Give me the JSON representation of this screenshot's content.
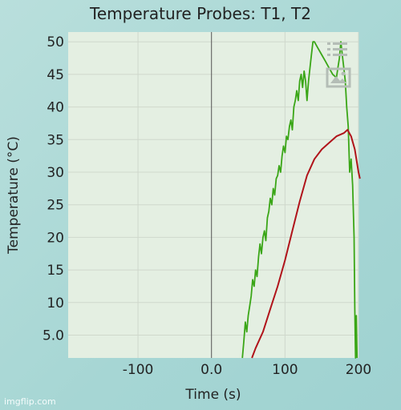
{
  "chart_data": {
    "type": "line",
    "title": "Temperature Probes: T1, T2",
    "xlabel": "Time (s)",
    "ylabel": "Temperature (°C)",
    "xlim": [
      -195,
      200
    ],
    "ylim": [
      1.5,
      51.5
    ],
    "x_ticks": [
      -100,
      0,
      100,
      200
    ],
    "x_tick_labels": [
      "-100",
      "0.0",
      "100",
      "200"
    ],
    "y_ticks": [
      5,
      10,
      15,
      20,
      25,
      30,
      35,
      40,
      45,
      50
    ],
    "y_tick_labels": [
      "5.0",
      "10",
      "15",
      "20",
      "25",
      "30",
      "35",
      "40",
      "45",
      "50"
    ],
    "grid": true,
    "legend": "none",
    "series": [
      {
        "color": "#3aa617",
        "points": [
          [
            42,
            1.5
          ],
          [
            44,
            4
          ],
          [
            46,
            7
          ],
          [
            48,
            5.5
          ],
          [
            50,
            8
          ],
          [
            52,
            9.5
          ],
          [
            54,
            11
          ],
          [
            56,
            13.5
          ],
          [
            58,
            12.5
          ],
          [
            60,
            15
          ],
          [
            62,
            14
          ],
          [
            64,
            17
          ],
          [
            66,
            19
          ],
          [
            68,
            17.5
          ],
          [
            70,
            20
          ],
          [
            72,
            21
          ],
          [
            74,
            19.5
          ],
          [
            76,
            23
          ],
          [
            78,
            24
          ],
          [
            80,
            26
          ],
          [
            82,
            25
          ],
          [
            84,
            27.5
          ],
          [
            86,
            26.5
          ],
          [
            88,
            29
          ],
          [
            90,
            29.5
          ],
          [
            92,
            31
          ],
          [
            94,
            30
          ],
          [
            96,
            32.5
          ],
          [
            98,
            34
          ],
          [
            100,
            33
          ],
          [
            102,
            35.5
          ],
          [
            104,
            35
          ],
          [
            106,
            37
          ],
          [
            108,
            38
          ],
          [
            110,
            36.5
          ],
          [
            112,
            40
          ],
          [
            114,
            41
          ],
          [
            116,
            42.5
          ],
          [
            118,
            41
          ],
          [
            120,
            44
          ],
          [
            122,
            45
          ],
          [
            124,
            43
          ],
          [
            126,
            45.5
          ],
          [
            128,
            44
          ],
          [
            130,
            41
          ],
          [
            132,
            44
          ],
          [
            134,
            46
          ],
          [
            136,
            48
          ],
          [
            138,
            50
          ],
          [
            140,
            50
          ],
          [
            145,
            49
          ],
          [
            150,
            48
          ],
          [
            155,
            47
          ],
          [
            160,
            46
          ],
          [
            165,
            45
          ],
          [
            170,
            44.5
          ],
          [
            172,
            46
          ],
          [
            174,
            47.5
          ],
          [
            176,
            50
          ],
          [
            178,
            48
          ],
          [
            180,
            46
          ],
          [
            182,
            44
          ],
          [
            184,
            40
          ],
          [
            186,
            37
          ],
          [
            188,
            30
          ],
          [
            190,
            32
          ],
          [
            192,
            28
          ],
          [
            194,
            20
          ],
          [
            195,
            9
          ],
          [
            196,
            1.5
          ],
          [
            197,
            8
          ],
          [
            198,
            1.5
          ]
        ]
      },
      {
        "color": "#b0131a",
        "points": [
          [
            55,
            1.5
          ],
          [
            60,
            3
          ],
          [
            70,
            5.5
          ],
          [
            80,
            9
          ],
          [
            90,
            12.5
          ],
          [
            100,
            16.5
          ],
          [
            110,
            21
          ],
          [
            120,
            25.5
          ],
          [
            130,
            29.5
          ],
          [
            140,
            32
          ],
          [
            150,
            33.5
          ],
          [
            160,
            34.5
          ],
          [
            170,
            35.5
          ],
          [
            180,
            36
          ],
          [
            185,
            36.5
          ],
          [
            190,
            35.5
          ],
          [
            195,
            33.5
          ],
          [
            200,
            30
          ],
          [
            202,
            29
          ]
        ]
      }
    ]
  },
  "toolbar": {
    "menu_icon": "list-menu-icon",
    "export_icon": "image-export-icon"
  },
  "colors": {
    "plot_bg": "#e4efe2",
    "grid": "#cfd8cc",
    "zero_line": "#555555"
  },
  "watermark": "imgflip.com"
}
